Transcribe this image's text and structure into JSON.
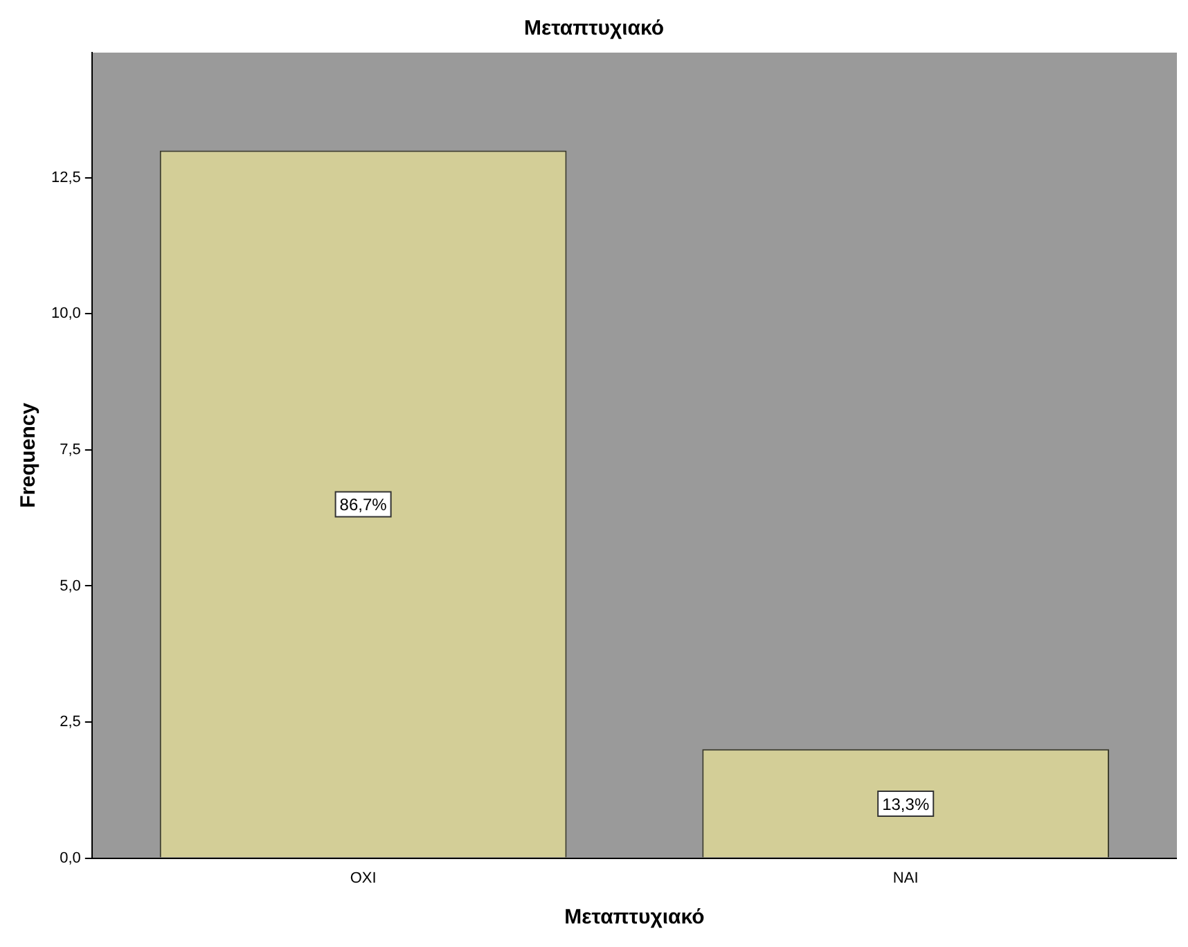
{
  "chart_data": {
    "type": "bar",
    "title": "Μεταπτυχιακό",
    "xlabel": "Μεταπτυχιακό",
    "ylabel": "Frequency",
    "categories": [
      "ΟΧΙ",
      "ΝΑΙ"
    ],
    "values": [
      13,
      2
    ],
    "color": "#d3ce97",
    "annotations": [
      {
        "text": "86,7%",
        "x": "ΟΧΙ",
        "y": 6.5
      },
      {
        "text": "13,3%",
        "x": "ΝΑΙ",
        "y": 1
      }
    ],
    "ylim": [
      0,
      14.8
    ],
    "yticks": [
      {
        "value": 0,
        "label": "0,0"
      },
      {
        "value": 2.5,
        "label": "2,5"
      },
      {
        "value": 5,
        "label": "5,0"
      },
      {
        "value": 7.5,
        "label": "7,5"
      },
      {
        "value": 10,
        "label": "10,0"
      },
      {
        "value": 12.5,
        "label": "12,5"
      }
    ],
    "grid": false,
    "legend": false
  }
}
